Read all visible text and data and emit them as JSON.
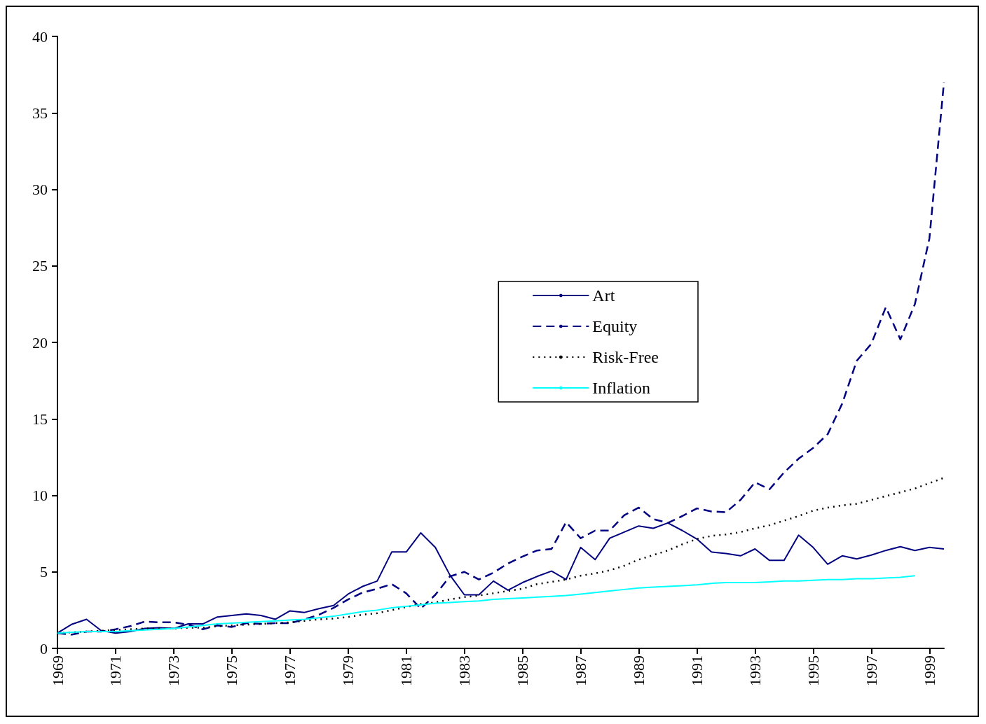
{
  "chart_data": {
    "type": "line",
    "x": [
      1969,
      1969.5,
      1970,
      1970.5,
      1971,
      1971.5,
      1972,
      1972.5,
      1973,
      1973.5,
      1974,
      1974.5,
      1975,
      1975.5,
      1976,
      1976.5,
      1977,
      1977.5,
      1978,
      1978.5,
      1979,
      1979.5,
      1980,
      1980.5,
      1981,
      1981.5,
      1982,
      1982.5,
      1983,
      1983.5,
      1984,
      1984.5,
      1985,
      1985.5,
      1986,
      1986.5,
      1987,
      1987.5,
      1988,
      1988.5,
      1989,
      1989.5,
      1990,
      1990.5,
      1991,
      1991.5,
      1992,
      1992.5,
      1993,
      1993.5,
      1994,
      1994.5,
      1995,
      1995.5,
      1996,
      1996.5,
      1997,
      1997.5,
      1998,
      1998.5,
      1999,
      1999.5
    ],
    "series": [
      {
        "name": "Art",
        "color": "#000080",
        "line_style": "solid",
        "values": [
          1.0,
          1.58,
          1.9,
          1.17,
          1.0,
          1.1,
          1.3,
          1.35,
          1.3,
          1.6,
          1.6,
          2.05,
          2.15,
          2.25,
          2.15,
          1.9,
          2.45,
          2.35,
          2.6,
          2.8,
          3.55,
          4.05,
          4.4,
          6.3,
          6.3,
          7.55,
          6.6,
          4.8,
          3.5,
          3.5,
          4.4,
          3.8,
          4.3,
          4.7,
          5.05,
          4.5,
          6.6,
          5.8,
          7.2,
          7.6,
          8.0,
          7.85,
          8.2,
          7.7,
          7.15,
          6.3,
          6.2,
          6.05,
          6.5,
          5.75,
          5.75,
          7.4,
          6.6,
          5.5,
          6.05,
          5.85,
          6.1,
          6.4,
          6.65,
          6.4,
          6.6,
          6.5
        ]
      },
      {
        "name": "Equity",
        "color": "#000080",
        "line_style": "dashed",
        "values": [
          1.0,
          0.9,
          1.1,
          1.1,
          1.25,
          1.45,
          1.75,
          1.7,
          1.7,
          1.55,
          1.25,
          1.5,
          1.4,
          1.65,
          1.6,
          1.65,
          1.65,
          1.9,
          2.2,
          2.65,
          3.2,
          3.65,
          3.9,
          4.2,
          3.6,
          2.6,
          3.5,
          4.7,
          5.0,
          4.5,
          4.95,
          5.55,
          6.0,
          6.4,
          6.5,
          8.25,
          7.2,
          7.7,
          7.7,
          8.7,
          9.2,
          8.45,
          8.2,
          8.65,
          9.15,
          8.95,
          8.9,
          9.7,
          10.85,
          10.4,
          11.5,
          12.4,
          13.1,
          14.0,
          16.0,
          18.8,
          19.9,
          22.3,
          20.2,
          22.5,
          26.8,
          37.0
        ]
      },
      {
        "name": "Risk-Free",
        "color": "#000000",
        "line_style": "dotted",
        "values": [
          1.0,
          1.05,
          1.1,
          1.15,
          1.2,
          1.25,
          1.3,
          1.3,
          1.3,
          1.35,
          1.35,
          1.45,
          1.5,
          1.55,
          1.6,
          1.65,
          1.7,
          1.8,
          1.9,
          1.95,
          2.05,
          2.2,
          2.3,
          2.5,
          2.7,
          2.9,
          3.0,
          3.2,
          3.35,
          3.45,
          3.6,
          3.75,
          3.9,
          4.2,
          4.35,
          4.5,
          4.75,
          4.9,
          5.1,
          5.4,
          5.8,
          6.1,
          6.4,
          6.8,
          7.15,
          7.35,
          7.45,
          7.6,
          7.85,
          8.05,
          8.35,
          8.65,
          9.0,
          9.2,
          9.35,
          9.45,
          9.7,
          9.95,
          10.2,
          10.45,
          10.8,
          11.15
        ]
      },
      {
        "name": "Inflation",
        "color": "#00ffff",
        "line_style": "solid",
        "values": [
          1.0,
          1.05,
          1.1,
          1.1,
          1.1,
          1.15,
          1.2,
          1.25,
          1.3,
          1.4,
          1.5,
          1.6,
          1.65,
          1.7,
          1.75,
          1.8,
          1.85,
          1.9,
          2.0,
          2.1,
          2.25,
          2.4,
          2.5,
          2.65,
          2.75,
          2.85,
          2.95,
          3.0,
          3.05,
          3.1,
          3.2,
          3.25,
          3.3,
          3.35,
          3.4,
          3.45,
          3.55,
          3.65,
          3.75,
          3.85,
          3.95,
          4.0,
          4.05,
          4.1,
          4.15,
          4.25,
          4.3,
          4.3,
          4.3,
          4.35,
          4.4,
          4.4,
          4.45,
          4.5,
          4.5,
          4.55,
          4.55,
          4.6,
          4.65,
          4.75,
          null,
          null
        ]
      }
    ],
    "xlim": [
      1969,
      1999.5
    ],
    "xticks": [
      1969,
      1971,
      1973,
      1975,
      1977,
      1979,
      1981,
      1983,
      1985,
      1987,
      1989,
      1991,
      1993,
      1995,
      1997,
      1999
    ],
    "ylim": [
      0,
      40
    ],
    "yticks": [
      0,
      5,
      10,
      15,
      20,
      25,
      30,
      35,
      40
    ],
    "grid": false,
    "legend": "right",
    "marker": "none"
  }
}
